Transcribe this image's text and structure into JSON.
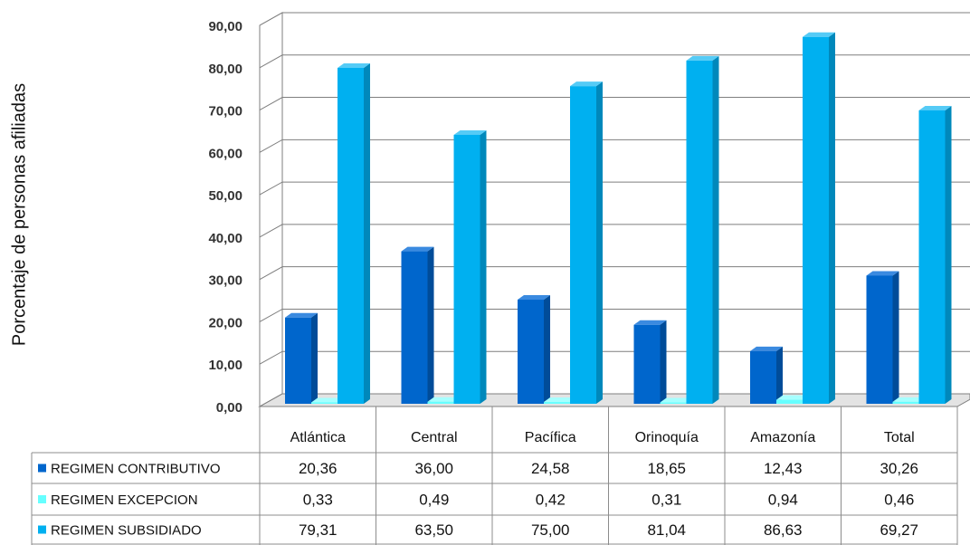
{
  "chart_data": {
    "type": "bar",
    "three_d": true,
    "categories": [
      "Atlántica",
      "Central",
      "Pacífica",
      "Orinoquía",
      "Amazonía",
      "Total"
    ],
    "series": [
      {
        "name": "REGIMEN CONTRIBUTIVO",
        "values": [
          20.36,
          36.0,
          24.58,
          18.65,
          12.43,
          30.26
        ],
        "labels": [
          "20,36",
          "36,00",
          "24,58",
          "18,65",
          "12,43",
          "30,26"
        ],
        "colors": {
          "front": "#0066cc",
          "side": "#004c99",
          "top": "#3a8ae0"
        }
      },
      {
        "name": "REGIMEN EXCEPCION",
        "values": [
          0.33,
          0.49,
          0.42,
          0.31,
          0.94,
          0.46
        ],
        "labels": [
          "0,33",
          "0,49",
          "0,42",
          "0,31",
          "0,94",
          "0,46"
        ],
        "colors": {
          "front": "#66ffff",
          "side": "#33cccc",
          "top": "#a6ffff"
        }
      },
      {
        "name": "REGIMEN SUBSIDIADO",
        "values": [
          79.31,
          63.5,
          75.0,
          81.04,
          86.63,
          69.27
        ],
        "labels": [
          "79,31",
          "63,50",
          "75,00",
          "81,04",
          "86,63",
          "69,27"
        ],
        "colors": {
          "front": "#00b0f0",
          "side": "#0088bb",
          "top": "#55cbf6"
        }
      }
    ],
    "xlabel": "",
    "ylabel": "Porcentaje de personas afiliadas",
    "yticks": [
      "0,00",
      "10,00",
      "20,00",
      "30,00",
      "40,00",
      "50,00",
      "60,00",
      "70,00",
      "80,00",
      "90,00"
    ],
    "ylim": [
      0,
      90
    ],
    "grid": true,
    "legend": "data-table-below"
  }
}
